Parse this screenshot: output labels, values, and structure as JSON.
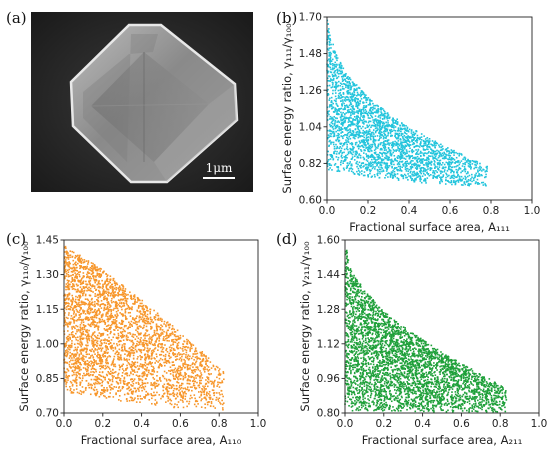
{
  "panels": {
    "a": {
      "label": "(a)",
      "scalebar": "1μm"
    },
    "b": {
      "label": "(b)"
    },
    "c": {
      "label": "(c)"
    },
    "d": {
      "label": "(d)"
    }
  },
  "chart_data": [
    {
      "id": "b",
      "type": "scatter",
      "color": "#22c4dc",
      "xlabel": "Fractional surface area, A₁₁₁",
      "ylabel": "Surface energy ratio, γ₁₁₁/γ₁₀₀",
      "xlim": [
        0,
        1.0
      ],
      "ylim": [
        0.6,
        1.7
      ],
      "xticks": [
        "0.0",
        "0.2",
        "0.4",
        "0.6",
        "0.8",
        "1.0"
      ],
      "yticks": [
        "0.60",
        "0.82",
        "1.04",
        "1.26",
        "1.48",
        "1.70"
      ],
      "upper_envelope": [
        [
          0.0,
          1.7
        ],
        [
          0.02,
          1.58
        ],
        [
          0.05,
          1.47
        ],
        [
          0.1,
          1.35
        ],
        [
          0.2,
          1.22
        ],
        [
          0.3,
          1.12
        ],
        [
          0.4,
          1.04
        ],
        [
          0.5,
          0.97
        ],
        [
          0.6,
          0.91
        ],
        [
          0.7,
          0.85
        ],
        [
          0.8,
          0.79
        ],
        [
          0.9,
          0.73
        ]
      ],
      "lower_envelope": [
        [
          0.0,
          0.78
        ],
        [
          0.2,
          0.74
        ],
        [
          0.4,
          0.71
        ],
        [
          0.6,
          0.69
        ],
        [
          0.8,
          0.68
        ],
        [
          0.9,
          0.69
        ]
      ],
      "xmax": 0.91,
      "n_points": 2600
    },
    {
      "id": "c",
      "type": "scatter",
      "color": "#f7962a",
      "xlabel": "Fractional surface area, A₁₁₀",
      "ylabel": "Surface energy ratio, γ₁₁₀/γ₁₀₀",
      "xlim": [
        0,
        1.0
      ],
      "ylim": [
        0.7,
        1.45
      ],
      "xticks": [
        "0.0",
        "0.2",
        "0.4",
        "0.6",
        "0.8",
        "1.0"
      ],
      "yticks": [
        "0.70",
        "0.85",
        "1.00",
        "1.15",
        "1.30",
        "1.45"
      ],
      "upper_envelope": [
        [
          0.0,
          1.43
        ],
        [
          0.2,
          1.32
        ],
        [
          0.4,
          1.19
        ],
        [
          0.6,
          1.05
        ],
        [
          0.8,
          0.9
        ],
        [
          0.95,
          0.76
        ]
      ],
      "lower_envelope": [
        [
          0.0,
          0.79
        ],
        [
          0.3,
          0.75
        ],
        [
          0.6,
          0.72
        ],
        [
          0.95,
          0.71
        ]
      ],
      "xmax": 0.96,
      "n_points": 3200
    },
    {
      "id": "d",
      "type": "scatter",
      "color": "#1fa03a",
      "xlabel": "Fractional surface area, A₂₁₁",
      "ylabel": "Surface energy ratio, γ₂₁₁/γ₁₀₀",
      "xlim": [
        0,
        1.0
      ],
      "ylim": [
        0.8,
        1.6
      ],
      "xticks": [
        "0.0",
        "0.2",
        "0.4",
        "0.6",
        "0.8",
        "1.0"
      ],
      "yticks": [
        "0.80",
        "0.96",
        "1.12",
        "1.28",
        "1.44",
        "1.60"
      ],
      "upper_envelope": [
        [
          0.0,
          1.6
        ],
        [
          0.03,
          1.46
        ],
        [
          0.1,
          1.37
        ],
        [
          0.2,
          1.27
        ],
        [
          0.3,
          1.2
        ],
        [
          0.4,
          1.14
        ],
        [
          0.5,
          1.08
        ],
        [
          0.6,
          1.03
        ],
        [
          0.7,
          0.98
        ],
        [
          0.8,
          0.93
        ],
        [
          0.9,
          0.87
        ],
        [
          0.97,
          0.82
        ]
      ],
      "lower_envelope": [
        [
          0.0,
          0.81
        ],
        [
          0.5,
          0.805
        ],
        [
          0.97,
          0.805
        ]
      ],
      "xmax": 0.97,
      "n_points": 3600
    }
  ]
}
